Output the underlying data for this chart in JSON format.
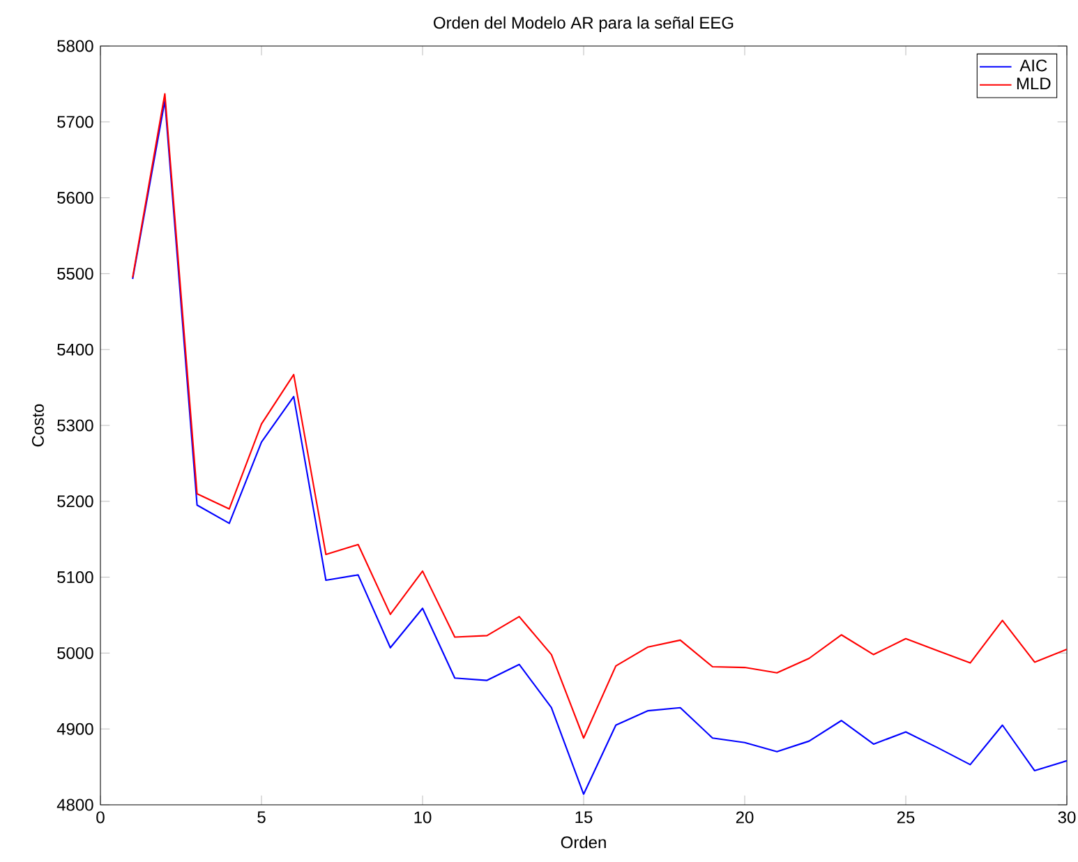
{
  "chart_data": {
    "type": "line",
    "title": "Orden del Modelo AR para la señal EEG",
    "xlabel": "Orden",
    "ylabel": "Costo",
    "x": [
      1,
      2,
      3,
      4,
      5,
      6,
      7,
      8,
      9,
      10,
      11,
      12,
      13,
      14,
      15,
      16,
      17,
      18,
      19,
      20,
      21,
      22,
      23,
      24,
      25,
      26,
      27,
      28,
      29,
      30
    ],
    "series": [
      {
        "name": "AIC",
        "color": "#0000ff",
        "values": [
          5493,
          5728,
          5195,
          5171,
          5278,
          5338,
          5096,
          5103,
          5007,
          5059,
          4967,
          4964,
          4985,
          4928,
          4814,
          4905,
          4924,
          4928,
          4888,
          4882,
          4870,
          4884,
          4911,
          4880,
          4896,
          4875,
          4853,
          4905,
          4845,
          4858
        ]
      },
      {
        "name": "MLD",
        "color": "#ff0000",
        "values": [
          5495,
          5737,
          5210,
          5190,
          5302,
          5367,
          5130,
          5143,
          5051,
          5108,
          5021,
          5023,
          5048,
          4998,
          4888,
          4983,
          5008,
          5017,
          4982,
          4981,
          4974,
          4993,
          5024,
          4998,
          5019,
          5003,
          4987,
          5043,
          4988,
          5005
        ]
      }
    ],
    "xlim": [
      0,
      30
    ],
    "xticks": [
      0,
      5,
      10,
      15,
      20,
      25,
      30
    ],
    "ylim": [
      4800,
      5800
    ],
    "yticks": [
      4800,
      4900,
      5000,
      5100,
      5200,
      5300,
      5400,
      5500,
      5600,
      5700,
      5800
    ],
    "grid": false,
    "legend": "top right",
    "marker": "none",
    "line_style": "solid"
  }
}
